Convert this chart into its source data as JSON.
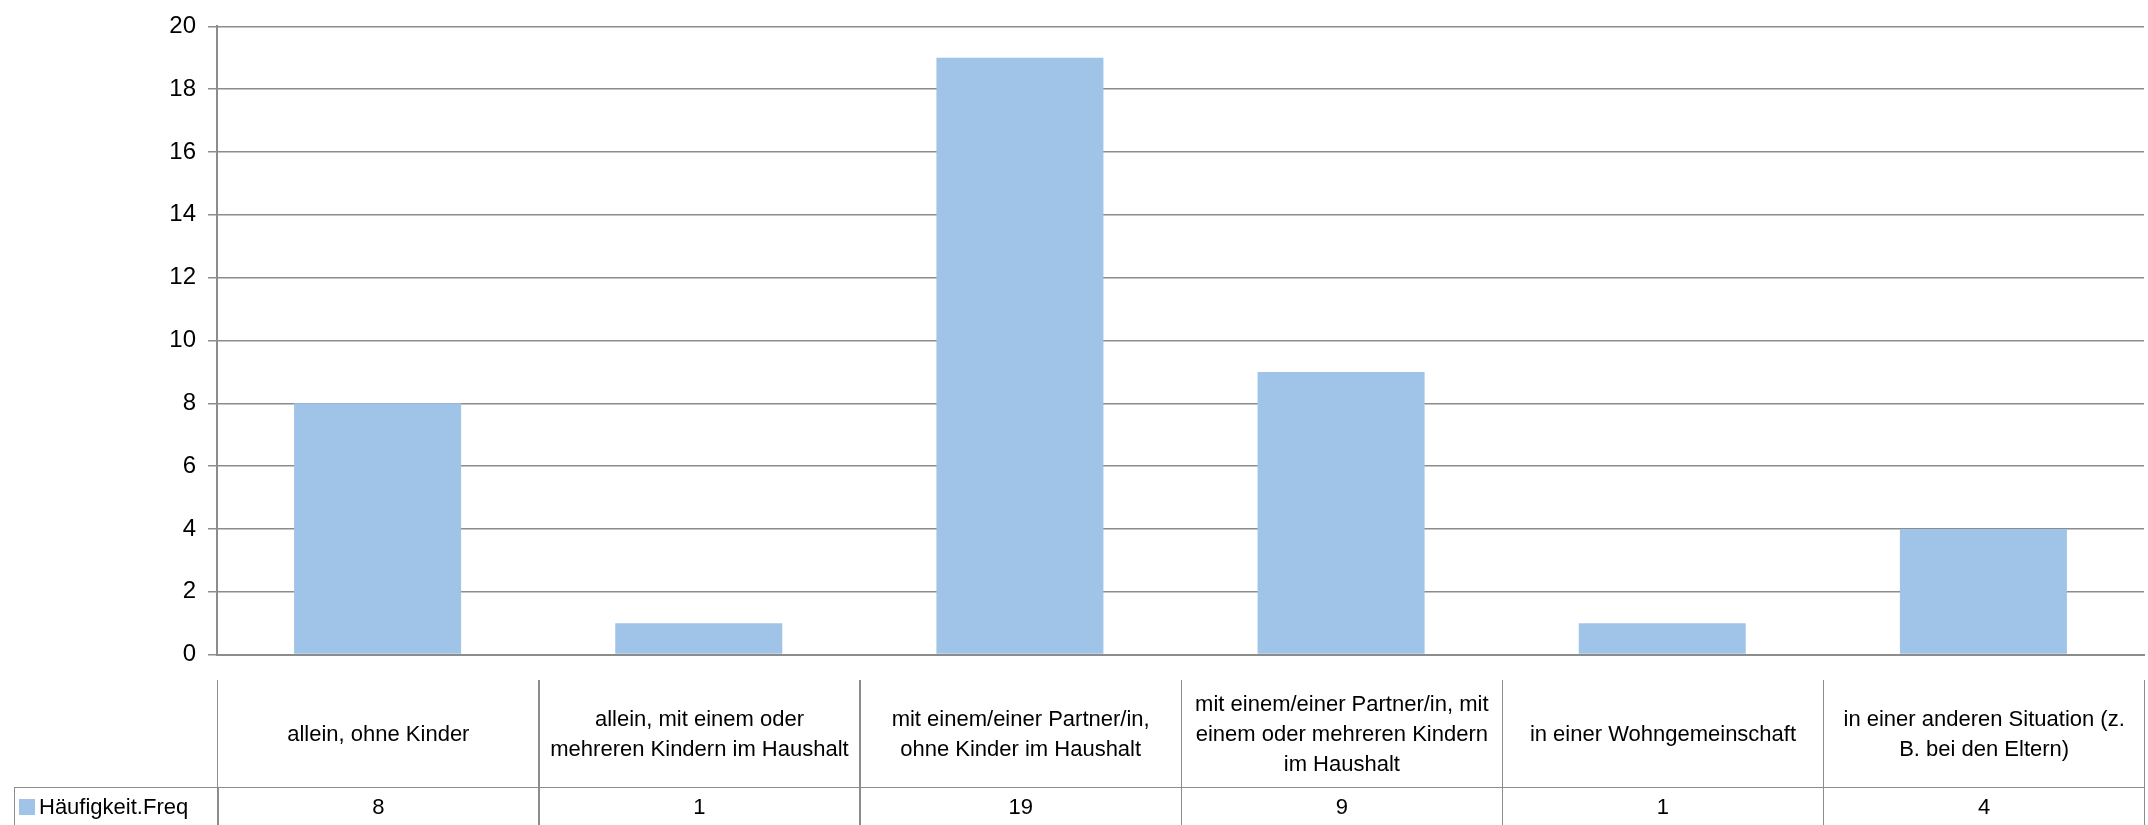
{
  "chart_data": {
    "type": "bar",
    "categories": [
      "allein, ohne Kinder",
      "allein, mit einem oder mehreren Kindern im Haushalt",
      "mit einem/einer Partner/in, ohne Kinder im Haushalt",
      "mit einem/einer Partner/in, mit einem oder mehreren Kindern im Haushalt",
      "in einer Wohngemeinschaft",
      "in einer anderen Situation (z. B. bei den Eltern)"
    ],
    "series": [
      {
        "name": "Häufigkeit.Freq",
        "color": "#a0c4e8",
        "values": [
          8,
          1,
          19,
          9,
          1,
          4
        ]
      }
    ],
    "ylim": [
      0,
      20
    ],
    "yticks": [
      0,
      2,
      4,
      6,
      8,
      10,
      12,
      14,
      16,
      18,
      20
    ],
    "grid": "y",
    "legend": "bottom left",
    "data_labels": true
  }
}
